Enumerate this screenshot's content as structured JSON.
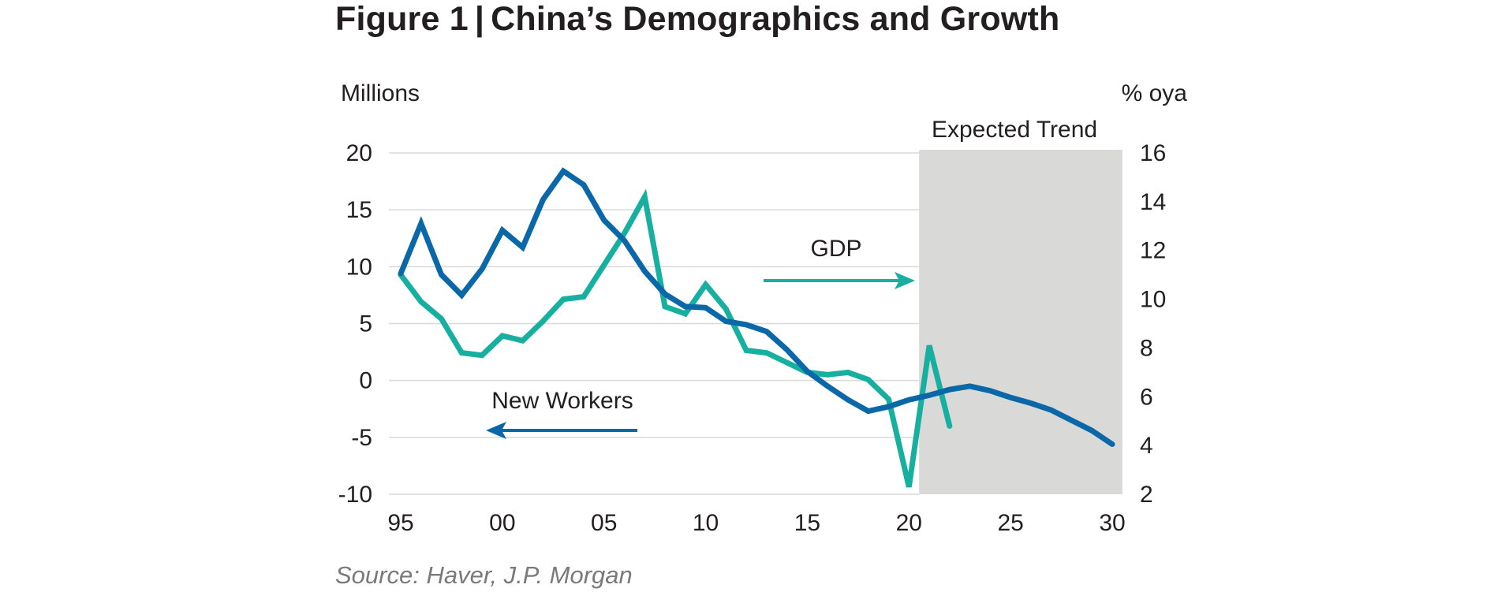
{
  "figure": {
    "label": "Figure 1",
    "separator": "|",
    "title": "China’s Demographics and Growth",
    "source": "Source: Haver, J.P. Morgan"
  },
  "colors": {
    "new_workers": "#0a67a8",
    "gdp": "#17b0a0",
    "shade": "#d9d9d8",
    "grid": "#d9d9d9"
  },
  "chart_data": {
    "type": "line",
    "xlabel": "",
    "left_axis_label": "Millions",
    "right_axis_label": "% oya",
    "x_ticks": [
      {
        "value": 1995,
        "label": "95"
      },
      {
        "value": 2000,
        "label": "00"
      },
      {
        "value": 2005,
        "label": "05"
      },
      {
        "value": 2010,
        "label": "10"
      },
      {
        "value": 2015,
        "label": "15"
      },
      {
        "value": 2020,
        "label": "20"
      },
      {
        "value": 2025,
        "label": "25"
      },
      {
        "value": 2030,
        "label": "30"
      }
    ],
    "xlim": [
      1995,
      2030
    ],
    "left_ylim": [
      -10,
      20
    ],
    "left_ticks": [
      {
        "value": 20,
        "label": "20"
      },
      {
        "value": 15,
        "label": "15"
      },
      {
        "value": 10,
        "label": "10"
      },
      {
        "value": 5,
        "label": "5"
      },
      {
        "value": 0,
        "label": "0"
      },
      {
        "value": -5,
        "label": "-5"
      },
      {
        "value": -10,
        "label": "-10"
      }
    ],
    "right_ylim": [
      2,
      16
    ],
    "right_ticks": [
      {
        "value": 16,
        "label": "16"
      },
      {
        "value": 14,
        "label": "14"
      },
      {
        "value": 12,
        "label": "12"
      },
      {
        "value": 10,
        "label": "10"
      },
      {
        "value": 8,
        "label": "8"
      },
      {
        "value": 6,
        "label": "6"
      },
      {
        "value": 4,
        "label": "4"
      },
      {
        "value": 2,
        "label": "2"
      }
    ],
    "shaded_region": {
      "label": "Expected Trend",
      "x_start": 2020.5,
      "x_end": 2030.5
    },
    "series": [
      {
        "name": "New Workers",
        "axis": "left",
        "arrow": "left",
        "x": [
          1995,
          1996,
          1997,
          1998,
          1999,
          2000,
          2001,
          2002,
          2003,
          2004,
          2005,
          2006,
          2007,
          2008,
          2009,
          2010,
          2011,
          2012,
          2013,
          2014,
          2015,
          2016,
          2017,
          2018,
          2019,
          2020,
          2021,
          2022,
          2023,
          2024,
          2025,
          2026,
          2027,
          2028,
          2029,
          2030
        ],
        "values": [
          9.4,
          13.8,
          9.3,
          7.5,
          9.8,
          13.2,
          11.7,
          15.9,
          18.4,
          17.2,
          14.1,
          12.3,
          9.6,
          7.6,
          6.5,
          6.4,
          5.2,
          4.9,
          4.3,
          2.7,
          0.8,
          -0.5,
          -1.7,
          -2.7,
          -2.3,
          -1.7,
          -1.3,
          -0.8,
          -0.5,
          -0.9,
          -1.5,
          -2.0,
          -2.6,
          -3.5,
          -4.4,
          -5.6
        ]
      },
      {
        "name": "GDP",
        "axis": "right",
        "arrow": "right",
        "x": [
          1995,
          1996,
          1997,
          1998,
          1999,
          2000,
          2001,
          2002,
          2003,
          2004,
          2005,
          2006,
          2007,
          2008,
          2009,
          2010,
          2011,
          2012,
          2013,
          2014,
          2015,
          2016,
          2017,
          2018,
          2019,
          2020,
          2021,
          2022
        ],
        "values": [
          11.0,
          9.9,
          9.2,
          7.8,
          7.7,
          8.5,
          8.3,
          9.1,
          10.0,
          10.1,
          11.4,
          12.7,
          14.2,
          9.7,
          9.4,
          10.6,
          9.6,
          7.9,
          7.8,
          7.4,
          7.0,
          6.9,
          7.0,
          6.7,
          5.9,
          2.3,
          8.1,
          4.8
        ]
      }
    ]
  }
}
